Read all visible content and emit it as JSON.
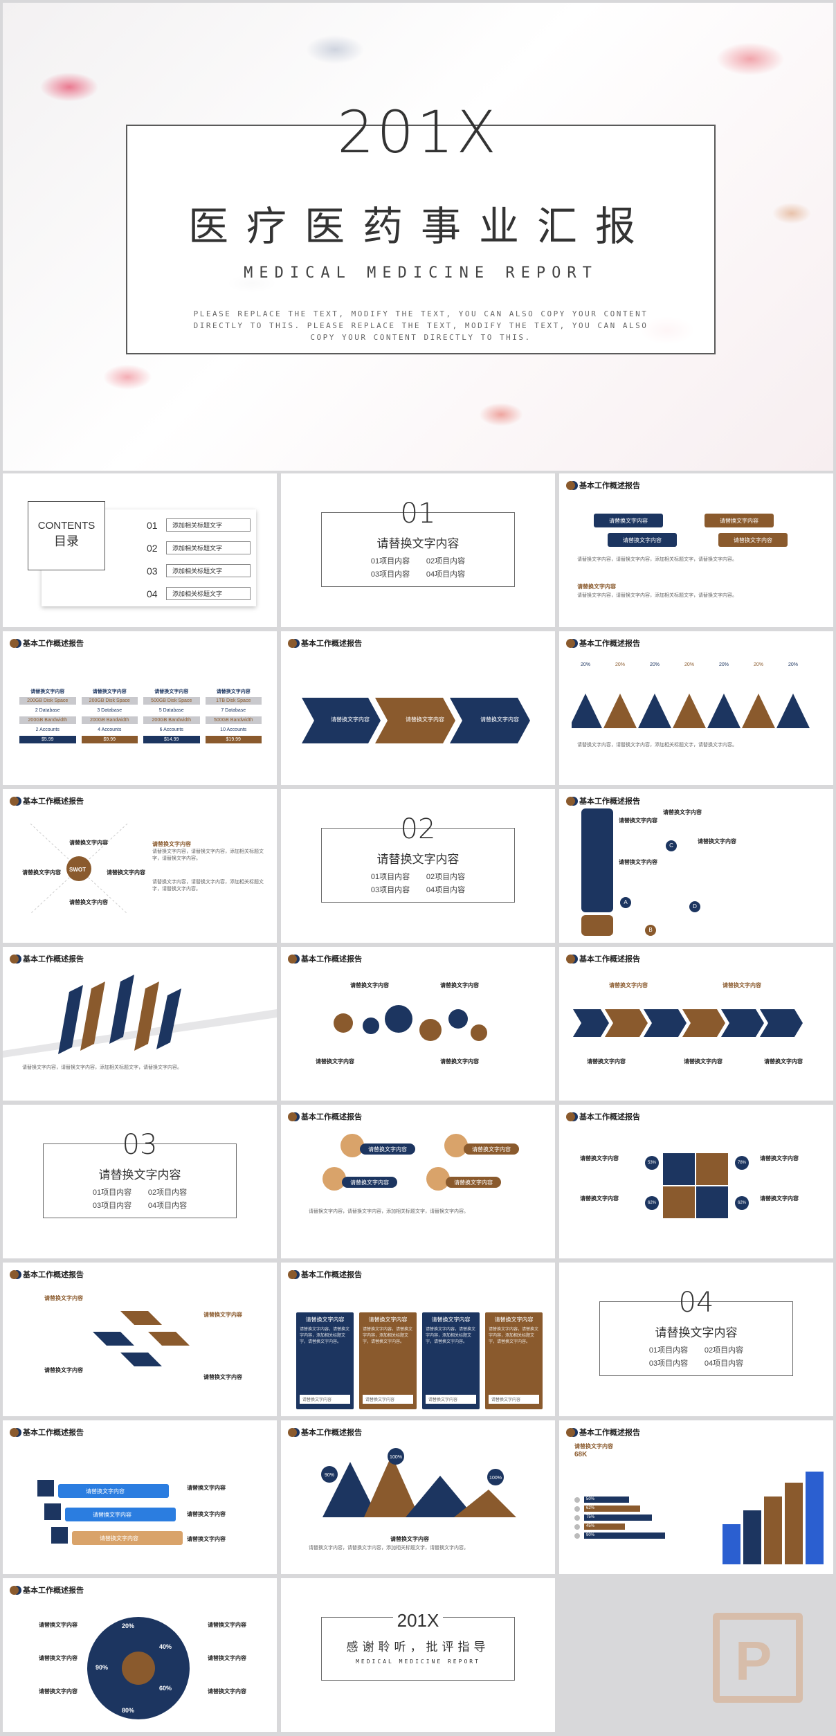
{
  "cover": {
    "year": "201X",
    "title": "医疗医药事业汇报",
    "subtitle": "MEDICAL MEDICINE REPORT",
    "desc": "PLEASE REPLACE THE TEXT, MODIFY THE TEXT, YOU CAN ALSO COPY YOUR CONTENT DIRECTLY TO THIS. PLEASE REPLACE THE TEXT, MODIFY THE TEXT, YOU CAN ALSO COPY YOUR CONTENT DIRECTLY TO THIS."
  },
  "header": "基本工作概述报告",
  "contents": {
    "title_en": "CONTENTS",
    "title_cn": "目录",
    "items": [
      {
        "num": "01",
        "label": "添加相关标题文字"
      },
      {
        "num": "02",
        "label": "添加相关标题文字"
      },
      {
        "num": "03",
        "label": "添加相关标题文字"
      },
      {
        "num": "04",
        "label": "添加相关标题文字"
      }
    ]
  },
  "sections": [
    {
      "num": "01",
      "title": "请替换文字内容",
      "items": [
        "01项目内容",
        "02项目内容",
        "03项目内容",
        "04项目内容"
      ]
    },
    {
      "num": "02",
      "title": "请替换文字内容",
      "items": [
        "01项目内容",
        "02项目内容",
        "03项目内容",
        "04项目内容"
      ]
    },
    {
      "num": "03",
      "title": "请替换文字内容",
      "items": [
        "01项目内容",
        "02项目内容",
        "03项目内容",
        "04项目内容"
      ]
    },
    {
      "num": "04",
      "title": "请替换文字内容",
      "items": [
        "01项目内容",
        "02项目内容",
        "03项目内容",
        "04项目内容"
      ]
    }
  ],
  "placeholder": "请替换文字内容",
  "placeholder_short": "请替换文字",
  "body_text": "请替换文字内容，请替换文字内容，添加相关标题文字，请替换文字内容。",
  "pricing": {
    "head": "请替换文字内容",
    "cols": [
      {
        "space": "200GB Disk Space",
        "db": "2 Database",
        "bw": "200GB Bandwidth",
        "acc": "2 Accounts",
        "price": "$5.99"
      },
      {
        "space": "200GB Disk Space",
        "db": "3 Database",
        "bw": "200GB Bandwidth",
        "acc": "4 Accounts",
        "price": "$9.99"
      },
      {
        "space": "500GB Disk Space",
        "db": "5 Database",
        "bw": "200GB Bandwidth",
        "acc": "6 Accounts",
        "price": "$14.99"
      },
      {
        "space": "1TB Disk Space",
        "db": "7 Database",
        "bw": "500GB Bandwidth",
        "acc": "10 Accounts",
        "price": "$19.99"
      }
    ]
  },
  "peaks": {
    "values": [
      "20%",
      "20%",
      "20%",
      "20%",
      "20%",
      "20%",
      "20%"
    ]
  },
  "swot": {
    "label": "SWOT"
  },
  "abcd": [
    "A",
    "B",
    "C",
    "D"
  ],
  "quad_pcts": [
    "53%",
    "78%",
    "62%",
    "62%"
  ],
  "chart_mountains": {
    "values": [
      "90%",
      "100%",
      "100%"
    ]
  },
  "bars": {
    "title": "请替换文字内容",
    "value": "68K",
    "labels": [
      "50%",
      "62%",
      "75%",
      "45%",
      "90%"
    ]
  },
  "donut": {
    "labels": [
      "20%",
      "40%",
      "60%",
      "80%",
      "90%"
    ]
  },
  "thanks": {
    "year": "201X",
    "title": "感谢聆听，批评指导",
    "subtitle": "MEDICAL MEDICINE REPORT"
  }
}
